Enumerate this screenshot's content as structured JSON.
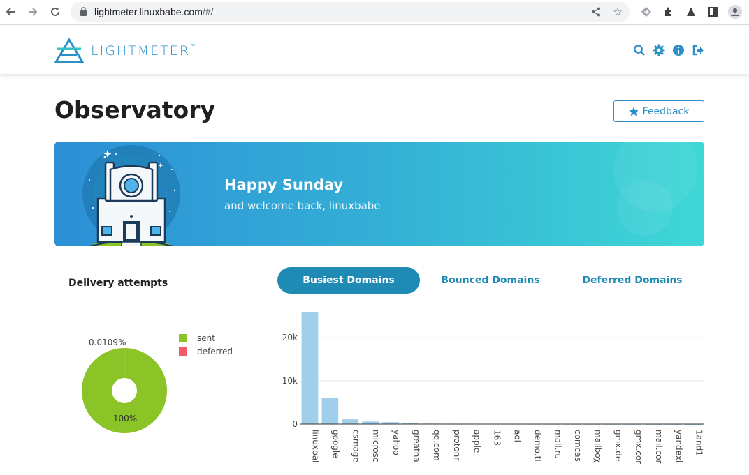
{
  "browser": {
    "url_host": "lightmeter.linuxbabe.com",
    "url_path": "/#/"
  },
  "header": {
    "logo_text": "LIGHTMETER",
    "logo_tm": "™"
  },
  "page": {
    "title": "Observatory",
    "feedback_label": "Feedback"
  },
  "banner": {
    "greeting": "Happy Sunday",
    "welcome": "and welcome back, linuxbabe"
  },
  "delivery": {
    "title": "Delivery attempts",
    "legend": [
      {
        "label": "sent",
        "color": "#8bc427"
      },
      {
        "label": "deferred",
        "color": "#f45b69"
      }
    ],
    "small_label": "0.0109%",
    "big_label": "100%"
  },
  "tabs": [
    {
      "label": "Busiest Domains",
      "active": true
    },
    {
      "label": "Bounced Domains",
      "active": false
    },
    {
      "label": "Deferred Domains",
      "active": false
    }
  ],
  "colors": {
    "accent": "#2c90c8",
    "tab_active": "#1f8ab3",
    "bar": "#a0cfec",
    "sent": "#8bc427",
    "deferred": "#f45b69"
  },
  "chart_data": [
    {
      "type": "pie",
      "title": "Delivery attempts",
      "labels": [
        "sent",
        "deferred"
      ],
      "values": [
        99.9891,
        0.0109
      ],
      "data_labels": [
        "100%",
        "0.0109%"
      ],
      "donut": true
    },
    {
      "type": "bar",
      "categories": [
        "linuxbal",
        "google",
        "csmage",
        "microsc",
        "yahoo",
        "greatha",
        "qq.com",
        "protonr",
        "apple",
        "163",
        "aol",
        "demo.tl",
        "mail.ru",
        "comcas",
        "mailboχ",
        "gmx.de",
        "gmx.cor",
        "mail.cor",
        "yandexl",
        "1and1"
      ],
      "values": [
        26000,
        6000,
        1100,
        600,
        450,
        150,
        120,
        100,
        90,
        80,
        70,
        60,
        50,
        45,
        40,
        35,
        30,
        25,
        20,
        15
      ],
      "yticks": [
        "0",
        "10k",
        "20k"
      ],
      "ylim": [
        0,
        26500
      ],
      "grid": true
    }
  ]
}
